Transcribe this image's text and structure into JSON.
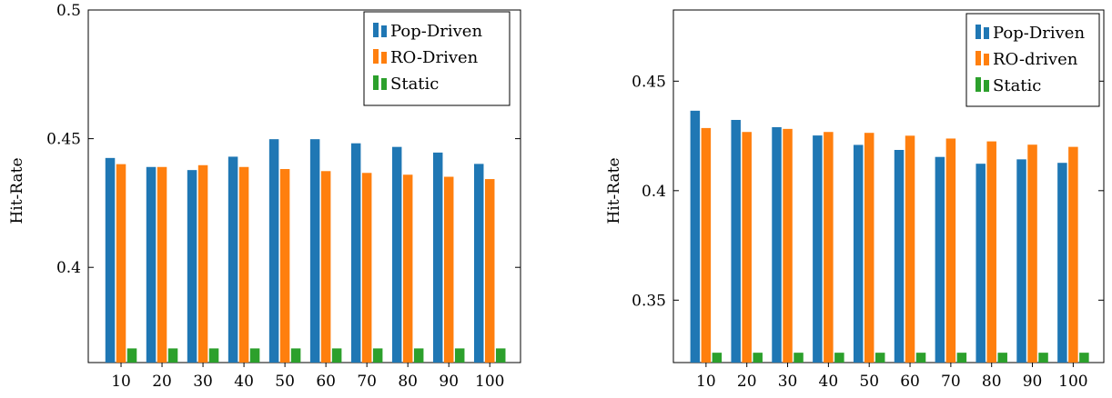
{
  "chart_data": [
    {
      "type": "bar",
      "categories": [
        "10",
        "20",
        "30",
        "40",
        "50",
        "60",
        "70",
        "80",
        "90",
        "100"
      ],
      "ylabel": "Hit-Rate",
      "ylim": [
        0.363,
        0.5
      ],
      "yticks": [
        0.4,
        0.45,
        0.5
      ],
      "ytick_labels": [
        "0.4",
        "0.45",
        "0.5"
      ],
      "legend_position": "top-right",
      "series": [
        {
          "name": "Pop-Driven",
          "color": "#1f77b4",
          "values": [
            0.4425,
            0.439,
            0.4378,
            0.443,
            0.4498,
            0.4498,
            0.4482,
            0.4468,
            0.4446,
            0.4402
          ]
        },
        {
          "name": "RO-Driven",
          "color": "#ff7f0e",
          "values": [
            0.4401,
            0.439,
            0.4397,
            0.439,
            0.4382,
            0.4374,
            0.4367,
            0.436,
            0.4352,
            0.4343
          ]
        },
        {
          "name": "Static",
          "color": "#2ca02c",
          "values": [
            0.3685,
            0.3685,
            0.3685,
            0.3685,
            0.3685,
            0.3685,
            0.3685,
            0.3685,
            0.3685,
            0.3685
          ]
        }
      ]
    },
    {
      "type": "bar",
      "categories": [
        "10",
        "20",
        "30",
        "40",
        "50",
        "60",
        "70",
        "80",
        "90",
        "100"
      ],
      "ylabel": "Hit-Rate",
      "ylim": [
        0.3215,
        0.4825
      ],
      "yticks": [
        0.35,
        0.4,
        0.45
      ],
      "ytick_labels": [
        "0.35",
        "0.4",
        "0.45"
      ],
      "legend_position": "top-right",
      "series": [
        {
          "name": "Pop-Driven",
          "color": "#1f77b4",
          "values": [
            0.4365,
            0.4323,
            0.429,
            0.4252,
            0.4209,
            0.4186,
            0.4154,
            0.4123,
            0.4143,
            0.4127
          ]
        },
        {
          "name": "RO-driven",
          "color": "#ff7f0e",
          "values": [
            0.4286,
            0.4268,
            0.4282,
            0.4268,
            0.4264,
            0.4251,
            0.4238,
            0.4225,
            0.421,
            0.42
          ]
        },
        {
          "name": "Static",
          "color": "#2ca02c",
          "values": [
            0.326,
            0.326,
            0.326,
            0.326,
            0.326,
            0.326,
            0.326,
            0.326,
            0.326,
            0.326
          ]
        }
      ]
    }
  ]
}
